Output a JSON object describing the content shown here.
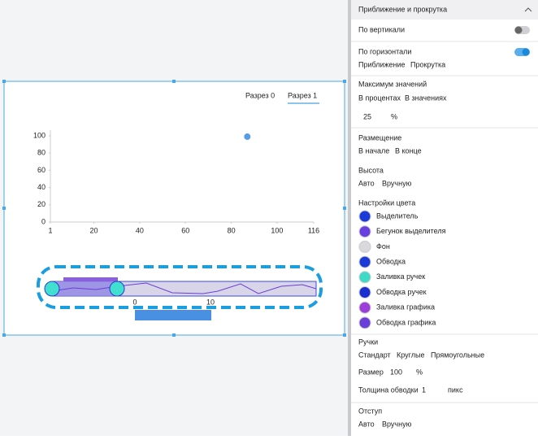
{
  "canvas": {
    "tabs": [
      "Разрез 0",
      "Разрез 1"
    ],
    "active_tab": 1,
    "chart": {
      "type": "scatter",
      "x": [
        87
      ],
      "y": [
        99
      ],
      "color": "#5b9be6",
      "xlim": [
        1,
        116
      ],
      "ylim": [
        0,
        100
      ],
      "xticks": [
        1,
        20,
        40,
        60,
        80,
        100,
        116
      ],
      "yticks": [
        0,
        20,
        40,
        60,
        80,
        100
      ]
    },
    "zoom_axis": {
      "ticks": [
        0,
        10
      ]
    }
  },
  "panel": {
    "title": "Приближение и прокрутка",
    "vertical": {
      "label": "По вертикали",
      "on": false
    },
    "horizontal": {
      "label": "По горизонтали",
      "on": true,
      "options": [
        "Приближение",
        "Прокрутка"
      ],
      "active": 0
    },
    "max_values": {
      "label": "Максимум значений",
      "options": [
        "В процентах",
        "В значениях"
      ],
      "active": 0,
      "value": 25,
      "unit": "%"
    },
    "placement": {
      "label": "Размещение",
      "options": [
        "В начале",
        "В конце"
      ],
      "active": 0
    },
    "height": {
      "label": "Высота",
      "options": [
        "Авто",
        "Вручную"
      ],
      "active": 0
    },
    "colors": {
      "label": "Настройки цвета",
      "items": [
        {
          "name": "Выделитель",
          "color": "#1c3ad8"
        },
        {
          "name": "Бегунок выделителя",
          "color": "#6a3fe0"
        },
        {
          "name": "Фон",
          "color": "#d9d9dd"
        },
        {
          "name": "Обводка",
          "color": "#1c3ad8"
        },
        {
          "name": "Заливка ручек",
          "color": "#3fd9c8"
        },
        {
          "name": "Обводка ручек",
          "color": "#1a2fd0"
        },
        {
          "name": "Заливка графика",
          "color": "#9b3fd8"
        },
        {
          "name": "Обводка графика",
          "color": "#6a3ed8"
        }
      ]
    },
    "handles": {
      "label": "Ручки",
      "options": [
        "Стандарт",
        "Круглые",
        "Прямоугольные"
      ],
      "active": 1,
      "size_label": "Размер",
      "size": 100,
      "size_unit": "%",
      "stroke_label": "Толщина обводки",
      "stroke": 1,
      "stroke_unit": "пикс"
    },
    "padding": {
      "label": "Отступ",
      "options": [
        "Авто",
        "Вручную"
      ],
      "active": 0
    }
  }
}
